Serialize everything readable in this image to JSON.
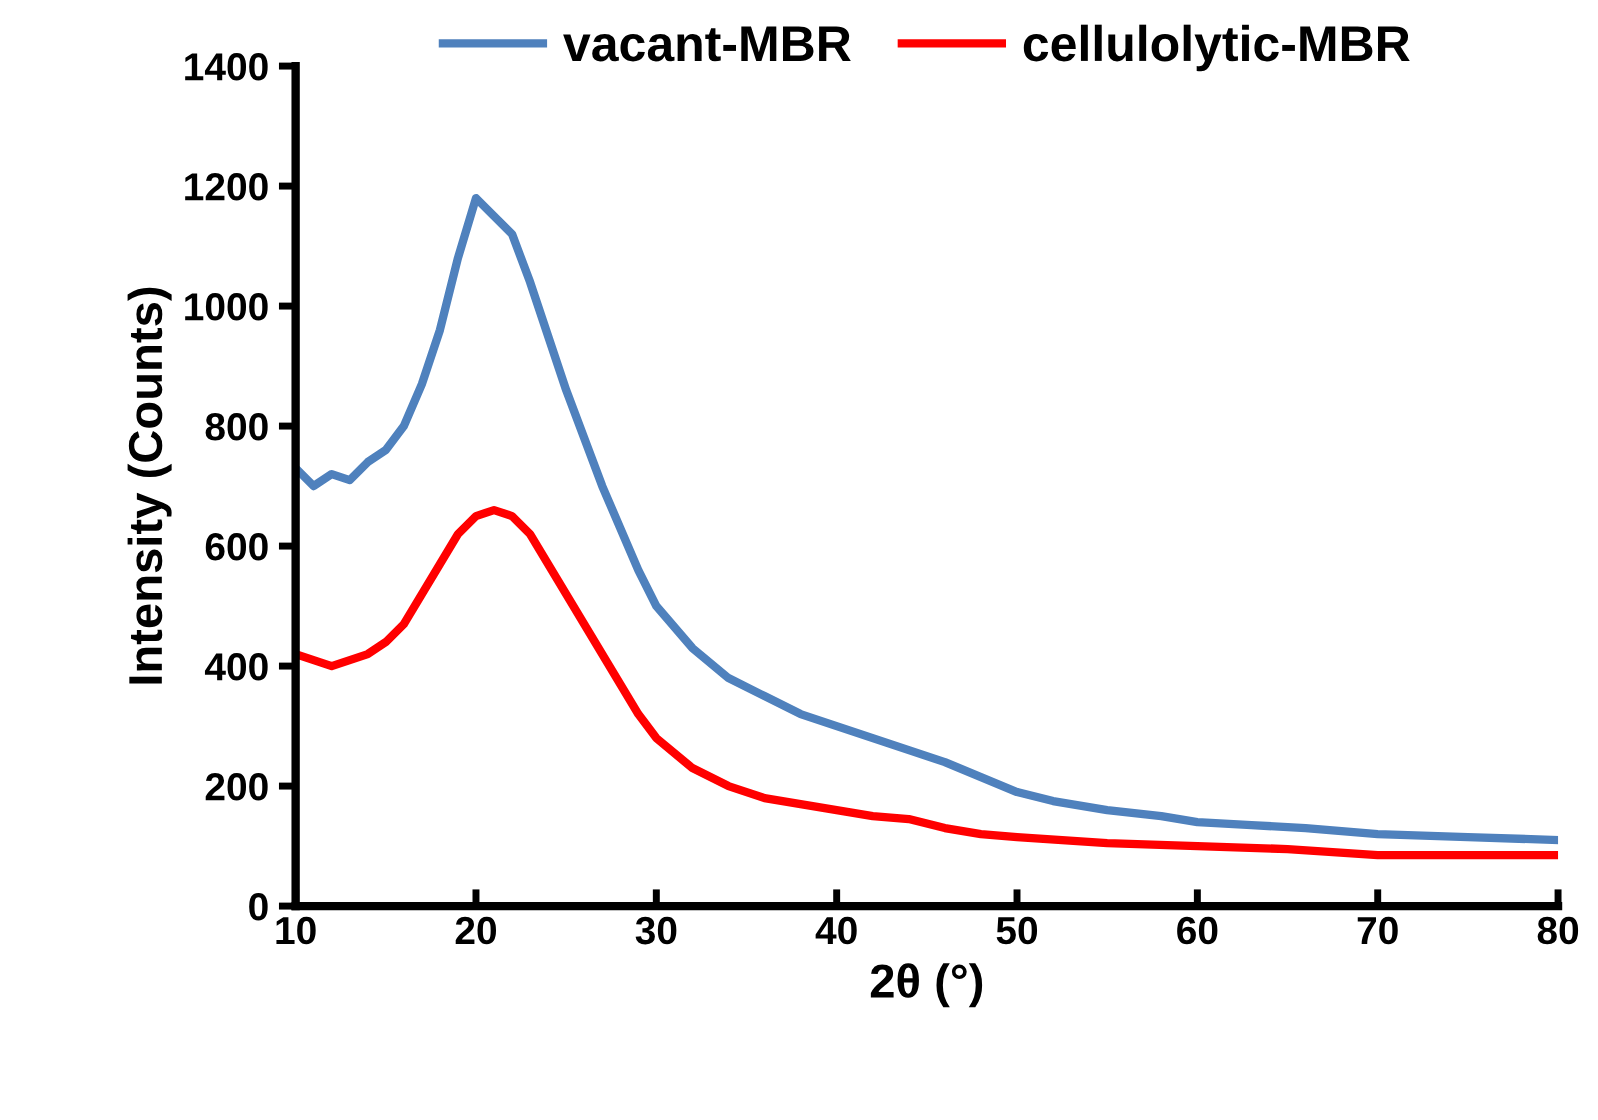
{
  "chart_data": {
    "type": "line",
    "xlabel": "2θ (°)",
    "ylabel": "Intensity (Counts)",
    "xlim": [
      10,
      80
    ],
    "ylim": [
      0,
      1400
    ],
    "xticks": [
      10,
      20,
      30,
      40,
      50,
      60,
      70,
      80
    ],
    "yticks": [
      0,
      200,
      400,
      600,
      800,
      1000,
      1200,
      1400
    ],
    "legend": "top",
    "grid": false,
    "marker": "none",
    "line_style": "solid",
    "series": [
      {
        "name": "vacant-MBR",
        "color": "#4f81bd",
        "x": [
          10,
          11,
          12,
          13,
          14,
          15,
          16,
          17,
          18,
          19,
          20,
          21,
          22,
          23,
          24,
          25,
          26,
          27,
          28,
          29,
          30,
          32,
          34,
          36,
          38,
          40,
          42,
          44,
          46,
          48,
          50,
          52,
          55,
          58,
          60,
          63,
          66,
          70,
          75,
          80
        ],
        "values": [
          730,
          700,
          720,
          710,
          740,
          760,
          800,
          870,
          960,
          1080,
          1180,
          1150,
          1120,
          1040,
          950,
          860,
          780,
          700,
          630,
          560,
          500,
          430,
          380,
          350,
          320,
          300,
          280,
          260,
          240,
          215,
          190,
          175,
          160,
          150,
          140,
          135,
          130,
          120,
          115,
          110
        ]
      },
      {
        "name": "cellulolytic-MBR",
        "color": "#ff0000",
        "x": [
          10,
          11,
          12,
          13,
          14,
          15,
          16,
          17,
          18,
          19,
          20,
          21,
          22,
          23,
          24,
          25,
          26,
          27,
          28,
          29,
          30,
          32,
          34,
          36,
          38,
          40,
          42,
          44,
          46,
          48,
          50,
          55,
          60,
          65,
          70,
          75,
          80
        ],
        "values": [
          420,
          410,
          400,
          410,
          420,
          440,
          470,
          520,
          570,
          620,
          650,
          660,
          650,
          620,
          570,
          520,
          470,
          420,
          370,
          320,
          280,
          230,
          200,
          180,
          170,
          160,
          150,
          145,
          130,
          120,
          115,
          105,
          100,
          95,
          85,
          85,
          85
        ]
      }
    ]
  }
}
